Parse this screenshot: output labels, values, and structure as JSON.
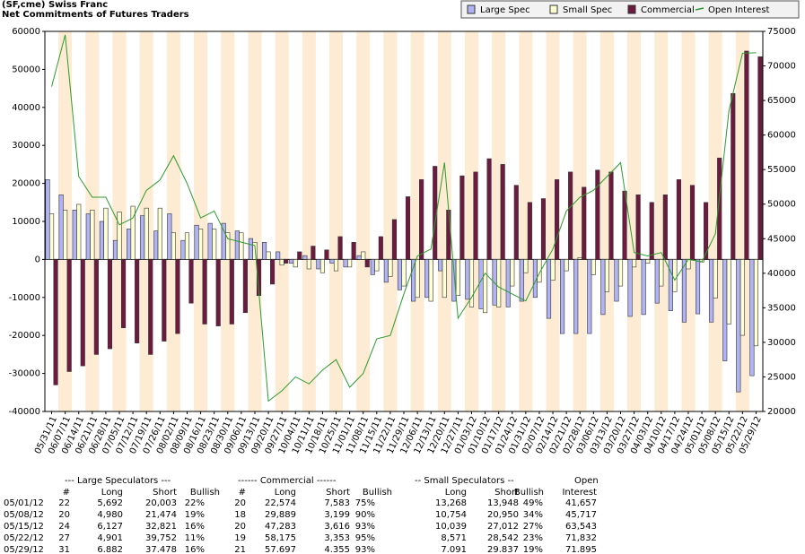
{
  "chart_data": {
    "type": "bar",
    "title": "(SF,cme) Swiss Franc",
    "subtitle": "Net Commitments of Futures Traders",
    "categories": [
      "05/31/11",
      "06/07/11",
      "06/14/11",
      "06/21/11",
      "06/28/11",
      "07/05/11",
      "07/12/11",
      "07/19/11",
      "07/26/11",
      "08/02/11",
      "08/09/11",
      "08/16/11",
      "08/23/11",
      "08/30/11",
      "09/06/11",
      "09/13/11",
      "09/20/11",
      "09/27/11",
      "10/04/11",
      "10/11/11",
      "10/18/11",
      "10/25/11",
      "11/01/11",
      "11/08/11",
      "11/15/11",
      "11/22/11",
      "11/29/11",
      "12/06/11",
      "12/13/11",
      "12/20/11",
      "12/27/11",
      "01/03/12",
      "01/10/12",
      "01/17/12",
      "01/24/12",
      "01/31/12",
      "02/07/12",
      "02/14/12",
      "02/21/12",
      "02/28/12",
      "03/06/12",
      "03/13/12",
      "03/20/12",
      "03/27/12",
      "04/03/12",
      "04/10/12",
      "04/17/12",
      "04/24/12",
      "05/01/12",
      "05/08/12",
      "05/15/12",
      "05/22/12",
      "05/29/12"
    ],
    "series": [
      {
        "name": "Large Spec",
        "color": "#b0b4f4",
        "values": [
          21000,
          17000,
          13000,
          12000,
          10000,
          5000,
          8000,
          11500,
          7500,
          12000,
          5000,
          9000,
          9500,
          9500,
          7500,
          5500,
          4500,
          2000,
          -1000,
          1000,
          -2500,
          -1000,
          -2000,
          1000,
          -4000,
          -6000,
          -8000,
          -11000,
          -10000,
          -3000,
          -11000,
          -10500,
          -13000,
          -12000,
          -12500,
          -11000,
          -10000,
          -15500,
          -19500,
          -19500,
          -19500,
          -14500,
          -11000,
          -15000,
          -14500,
          -11500,
          -13500,
          -16500,
          -14311,
          -16494,
          -26694,
          -34851,
          -30596
        ]
      },
      {
        "name": "Small Spec",
        "color": "#ffffd4",
        "values": [
          12000,
          13000,
          14500,
          13000,
          13500,
          12500,
          14000,
          13500,
          13500,
          7000,
          7000,
          8000,
          8000,
          7000,
          7000,
          4500,
          2000,
          -1500,
          -2000,
          -2500,
          -3500,
          -3000,
          -2000,
          2000,
          -3000,
          -4500,
          -7000,
          -10000,
          -11000,
          -10000,
          -9500,
          -12500,
          -14000,
          -12500,
          -7000,
          -3500,
          -6000,
          -5500,
          -3000,
          500,
          -4000,
          -8500,
          -7000,
          -2000,
          -1000,
          -7000,
          -8500,
          -2500,
          -680,
          -10196,
          -16973,
          -19971,
          -22746
        ]
      },
      {
        "name": "Commercial",
        "color": "#6e1a40",
        "values": [
          -33000,
          -29500,
          -28000,
          -25000,
          -23500,
          -18000,
          -22000,
          -25000,
          -21500,
          -19500,
          -11500,
          -17000,
          -17500,
          -17000,
          -14000,
          -9500,
          -6500,
          -1000,
          2000,
          3500,
          2500,
          6000,
          4500,
          -2000,
          6000,
          10500,
          16500,
          21000,
          24500,
          13000,
          22000,
          23000,
          26500,
          25000,
          19500,
          15000,
          16000,
          21000,
          23000,
          19000,
          23500,
          23000,
          18000,
          17000,
          15000,
          17000,
          21000,
          19500,
          14991,
          26690,
          43667,
          54822,
          53342
        ]
      },
      {
        "name": "Open Interest",
        "type": "line",
        "axis": "y2",
        "color": "#2e9a2e",
        "values": [
          67000,
          74500,
          54000,
          51000,
          51000,
          47000,
          48000,
          52000,
          53500,
          57000,
          53000,
          48000,
          49000,
          45000,
          44500,
          44000,
          21500,
          23000,
          25000,
          24000,
          26000,
          27500,
          23500,
          25500,
          30500,
          31000,
          37000,
          42500,
          43500,
          56000,
          33500,
          36500,
          40000,
          38000,
          37000,
          36000,
          40000,
          43500,
          49000,
          51000,
          52000,
          54000,
          56000,
          43000,
          42500,
          43000,
          39000,
          42000,
          41657,
          45717,
          63543,
          71832,
          71895
        ]
      }
    ],
    "ylim": [
      -40000,
      60000
    ],
    "yticks": [
      -40000,
      -30000,
      -20000,
      -10000,
      0,
      10000,
      20000,
      30000,
      40000,
      50000,
      60000
    ],
    "y2lim": [
      20000,
      75000
    ],
    "y2ticks": [
      20000,
      25000,
      30000,
      35000,
      40000,
      45000,
      50000,
      55000,
      60000,
      65000,
      70000,
      75000
    ],
    "legend": "top-right"
  },
  "table": {
    "groups": [
      "--- Large Speculators ---",
      "------ Commercial ------",
      "-- Small Speculators --",
      "Open"
    ],
    "columns": [
      "#",
      "Long",
      "Short",
      "Bullish",
      "#",
      "Long",
      "Short",
      "Bullish",
      "Long",
      "Short",
      "Bullish",
      "Interest"
    ],
    "rows": [
      [
        "05/01/12",
        "22",
        "5,692",
        "20,003",
        "22%",
        "20",
        "22,574",
        "7,583",
        "75%",
        "13,268",
        "13,948",
        "49%",
        "41,657"
      ],
      [
        "05/08/12",
        "20",
        "4,980",
        "21,474",
        "19%",
        "18",
        "29,889",
        "3,199",
        "90%",
        "10,754",
        "20,950",
        "34%",
        "45,717"
      ],
      [
        "05/15/12",
        "24",
        "6,127",
        "32,821",
        "16%",
        "20",
        "47,283",
        "3,616",
        "93%",
        "10,039",
        "27,012",
        "27%",
        "63,543"
      ],
      [
        "05/22/12",
        "27",
        "4,901",
        "39,752",
        "11%",
        "19",
        "58,175",
        "3,353",
        "95%",
        "8,571",
        "28,542",
        "23%",
        "71,832"
      ],
      [
        "05/29/12",
        "31",
        "6.882",
        "37.478",
        "16%",
        "21",
        "57.697",
        "4.355",
        "93%",
        "7.091",
        "29.837",
        "19%",
        "71.895"
      ]
    ]
  }
}
